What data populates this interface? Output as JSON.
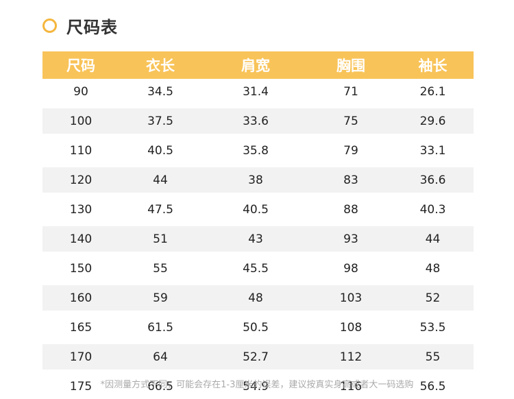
{
  "title": "尺码表",
  "accent_color": "#f8c358",
  "table": {
    "headers": [
      "尺码",
      "衣长",
      "肩宽",
      "胸围",
      "袖长"
    ],
    "rows": [
      [
        "90",
        "34.5",
        "31.4",
        "71",
        "26.1"
      ],
      [
        "100",
        "37.5",
        "33.6",
        "75",
        "29.6"
      ],
      [
        "110",
        "40.5",
        "35.8",
        "79",
        "33.1"
      ],
      [
        "120",
        "44",
        "38",
        "83",
        "36.6"
      ],
      [
        "130",
        "47.5",
        "40.5",
        "88",
        "40.3"
      ],
      [
        "140",
        "51",
        "43",
        "93",
        "44"
      ],
      [
        "150",
        "55",
        "45.5",
        "98",
        "48"
      ],
      [
        "160",
        "59",
        "48",
        "103",
        "52"
      ],
      [
        "165",
        "61.5",
        "50.5",
        "108",
        "53.5"
      ],
      [
        "170",
        "64",
        "52.7",
        "112",
        "55"
      ],
      [
        "175",
        "66.5",
        "54.9",
        "116",
        "56.5"
      ]
    ]
  },
  "note": "*因测量方式不同，可能会存在1-3厘米的误差，建议按真实身高或者大一码选购"
}
